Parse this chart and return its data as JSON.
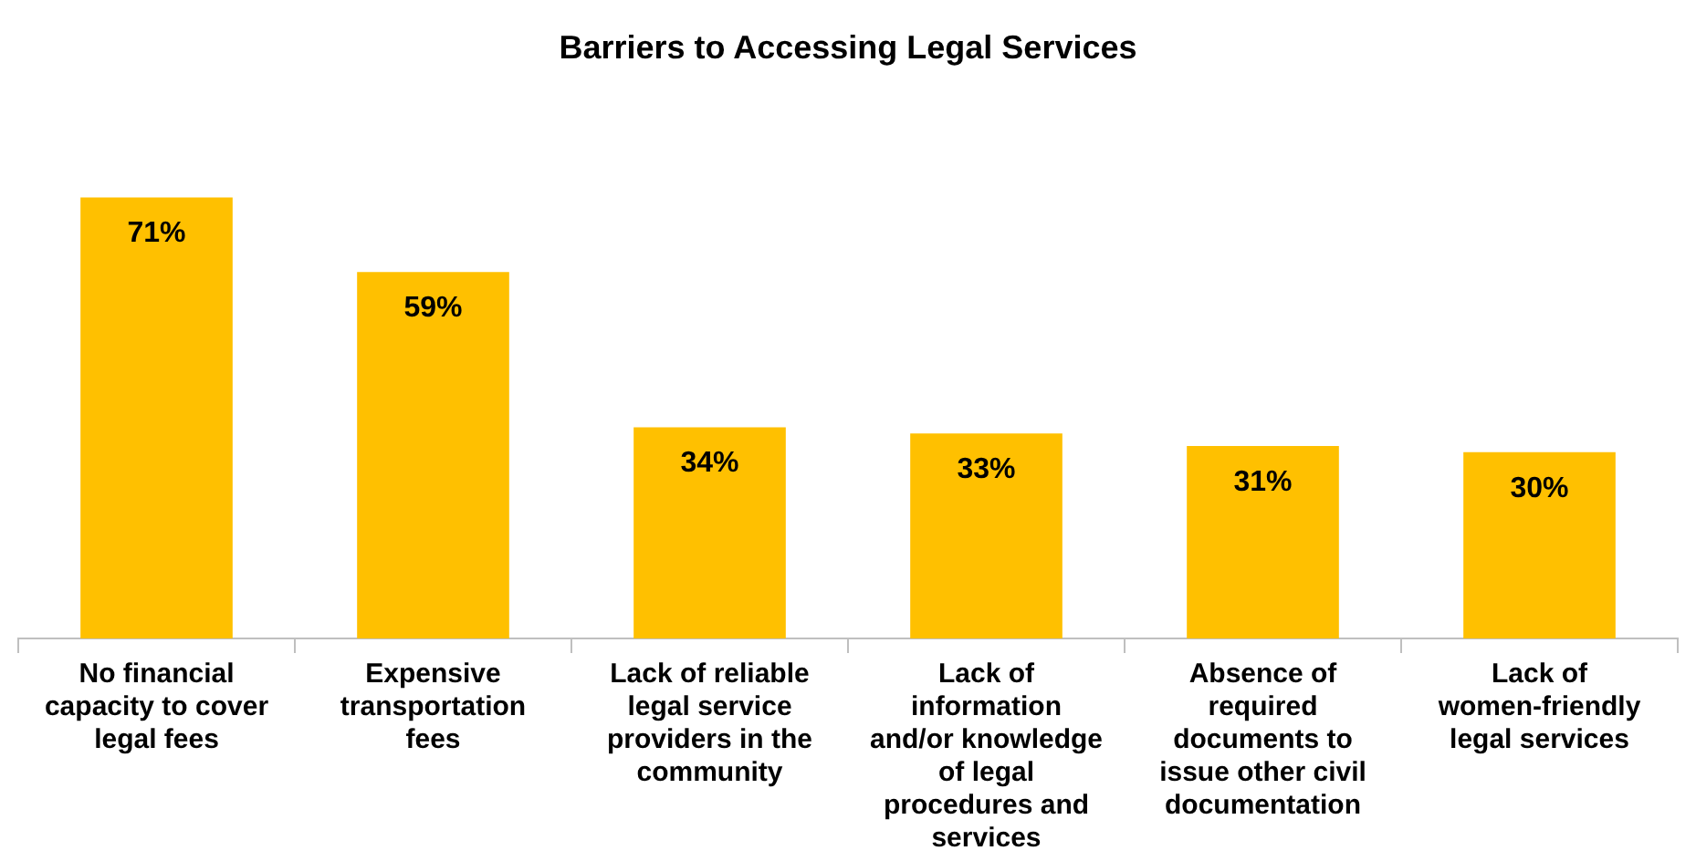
{
  "chart_data": {
    "type": "bar",
    "title": "Barriers to Accessing Legal Services",
    "categories": [
      "No financial capacity to cover legal fees",
      "Expensive transportation fees",
      "Lack of reliable legal service providers in the community",
      "Lack of information and/or knowledge of legal procedures and services",
      "Absence of required documents to issue other civil documentation",
      "Lack of women-friendly legal services"
    ],
    "values": [
      71,
      59,
      34,
      33,
      31,
      30
    ],
    "value_labels": [
      "71%",
      "59%",
      "34%",
      "33%",
      "31%",
      "30%"
    ],
    "color": "#ffc000",
    "grid": false,
    "legend": false
  }
}
